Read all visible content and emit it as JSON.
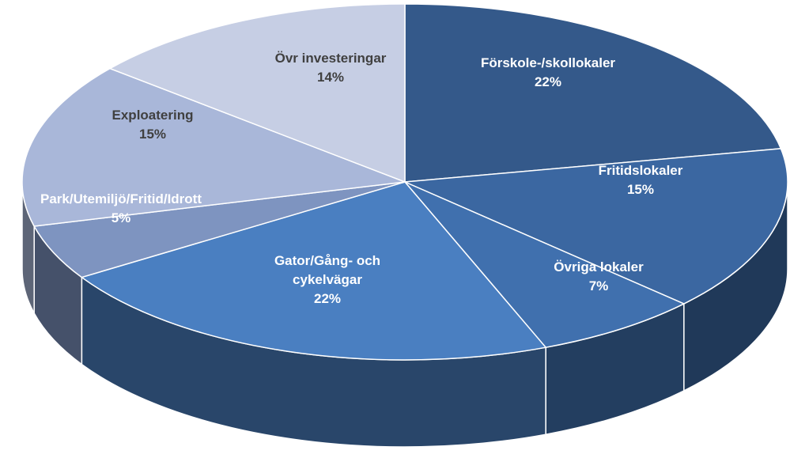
{
  "chart_data": {
    "type": "pie",
    "categories": [
      "Förskole-/skollokaler",
      "Fritidslokaler",
      "Övriga lokaler",
      "Gator/Gång- och cykelvägar",
      "Park/Utemiljö/Fritid/Idrott",
      "Exploatering",
      "Övr investeringar"
    ],
    "values": [
      22,
      15,
      7,
      22,
      5,
      15,
      14
    ],
    "value_labels": [
      "22%",
      "15%",
      "7%",
      "22%",
      "5%",
      "15%",
      "14%"
    ],
    "colors": [
      "#34598a",
      "#3b67a1",
      "#4070ae",
      "#4a7fc1",
      "#7e94c0",
      "#a9b7d9",
      "#c6cee4"
    ]
  }
}
